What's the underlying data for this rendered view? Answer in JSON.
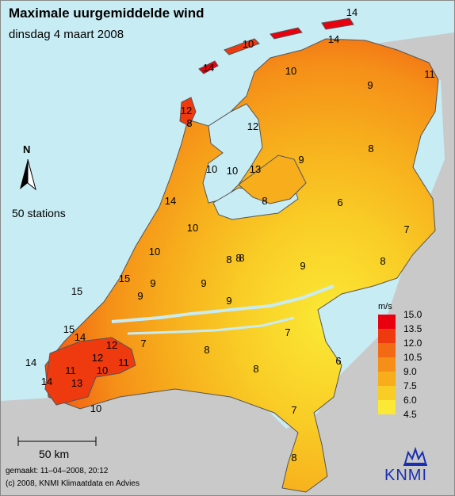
{
  "map": {
    "title": "Maximale uurgemiddelde wind",
    "subtitle": "dinsdag 4 maart 2008",
    "station_count": "50 stations",
    "north_label": "N",
    "scale_label": "50 km",
    "made": "gemaakt: 11–04–2008, 20:12",
    "copyright": "(c) 2008, KNMI Klimaatdata en Advies",
    "organization": "KNMI",
    "colors": {
      "sea": "#c8ecf4",
      "neighbour_land": "#c9c9c9",
      "borders": "#555555"
    }
  },
  "legend": {
    "unit": "m/s",
    "ticks": [
      "15.0",
      "13.5",
      "12.0",
      "10.5",
      "9.0",
      "7.5",
      "6.0",
      "4.5"
    ],
    "colors": [
      "#e8000e",
      "#ef3a10",
      "#f36a14",
      "#f58f18",
      "#f7ad1c",
      "#f9cd26",
      "#fbe935"
    ]
  },
  "stations": [
    {
      "value": "14"
    },
    {
      "value": "10"
    },
    {
      "value": "14"
    },
    {
      "value": "14"
    },
    {
      "value": "10"
    },
    {
      "value": "11"
    },
    {
      "value": "9"
    },
    {
      "value": "12"
    },
    {
      "value": "8"
    },
    {
      "value": "12"
    },
    {
      "value": "8"
    },
    {
      "value": "9"
    },
    {
      "value": "10"
    },
    {
      "value": "10"
    },
    {
      "value": "13"
    },
    {
      "value": "14"
    },
    {
      "value": "8"
    },
    {
      "value": "6"
    },
    {
      "value": "7"
    },
    {
      "value": "10"
    },
    {
      "value": "10"
    },
    {
      "value": "8"
    },
    {
      "value": "8"
    },
    {
      "value": "9"
    },
    {
      "value": "8"
    },
    {
      "value": "15"
    },
    {
      "value": "15"
    },
    {
      "value": "9"
    },
    {
      "value": "9"
    },
    {
      "value": "9"
    },
    {
      "value": "15"
    },
    {
      "value": "14"
    },
    {
      "value": "12"
    },
    {
      "value": "7"
    },
    {
      "value": "8"
    },
    {
      "value": "14"
    },
    {
      "value": "11"
    },
    {
      "value": "12"
    },
    {
      "value": "11"
    },
    {
      "value": "10"
    },
    {
      "value": "13"
    },
    {
      "value": "7"
    },
    {
      "value": "14"
    },
    {
      "value": "8"
    },
    {
      "value": "6"
    },
    {
      "value": "10"
    },
    {
      "value": "7"
    },
    {
      "value": "8"
    },
    {
      "value": "9"
    },
    {
      "value": "8"
    }
  ]
}
